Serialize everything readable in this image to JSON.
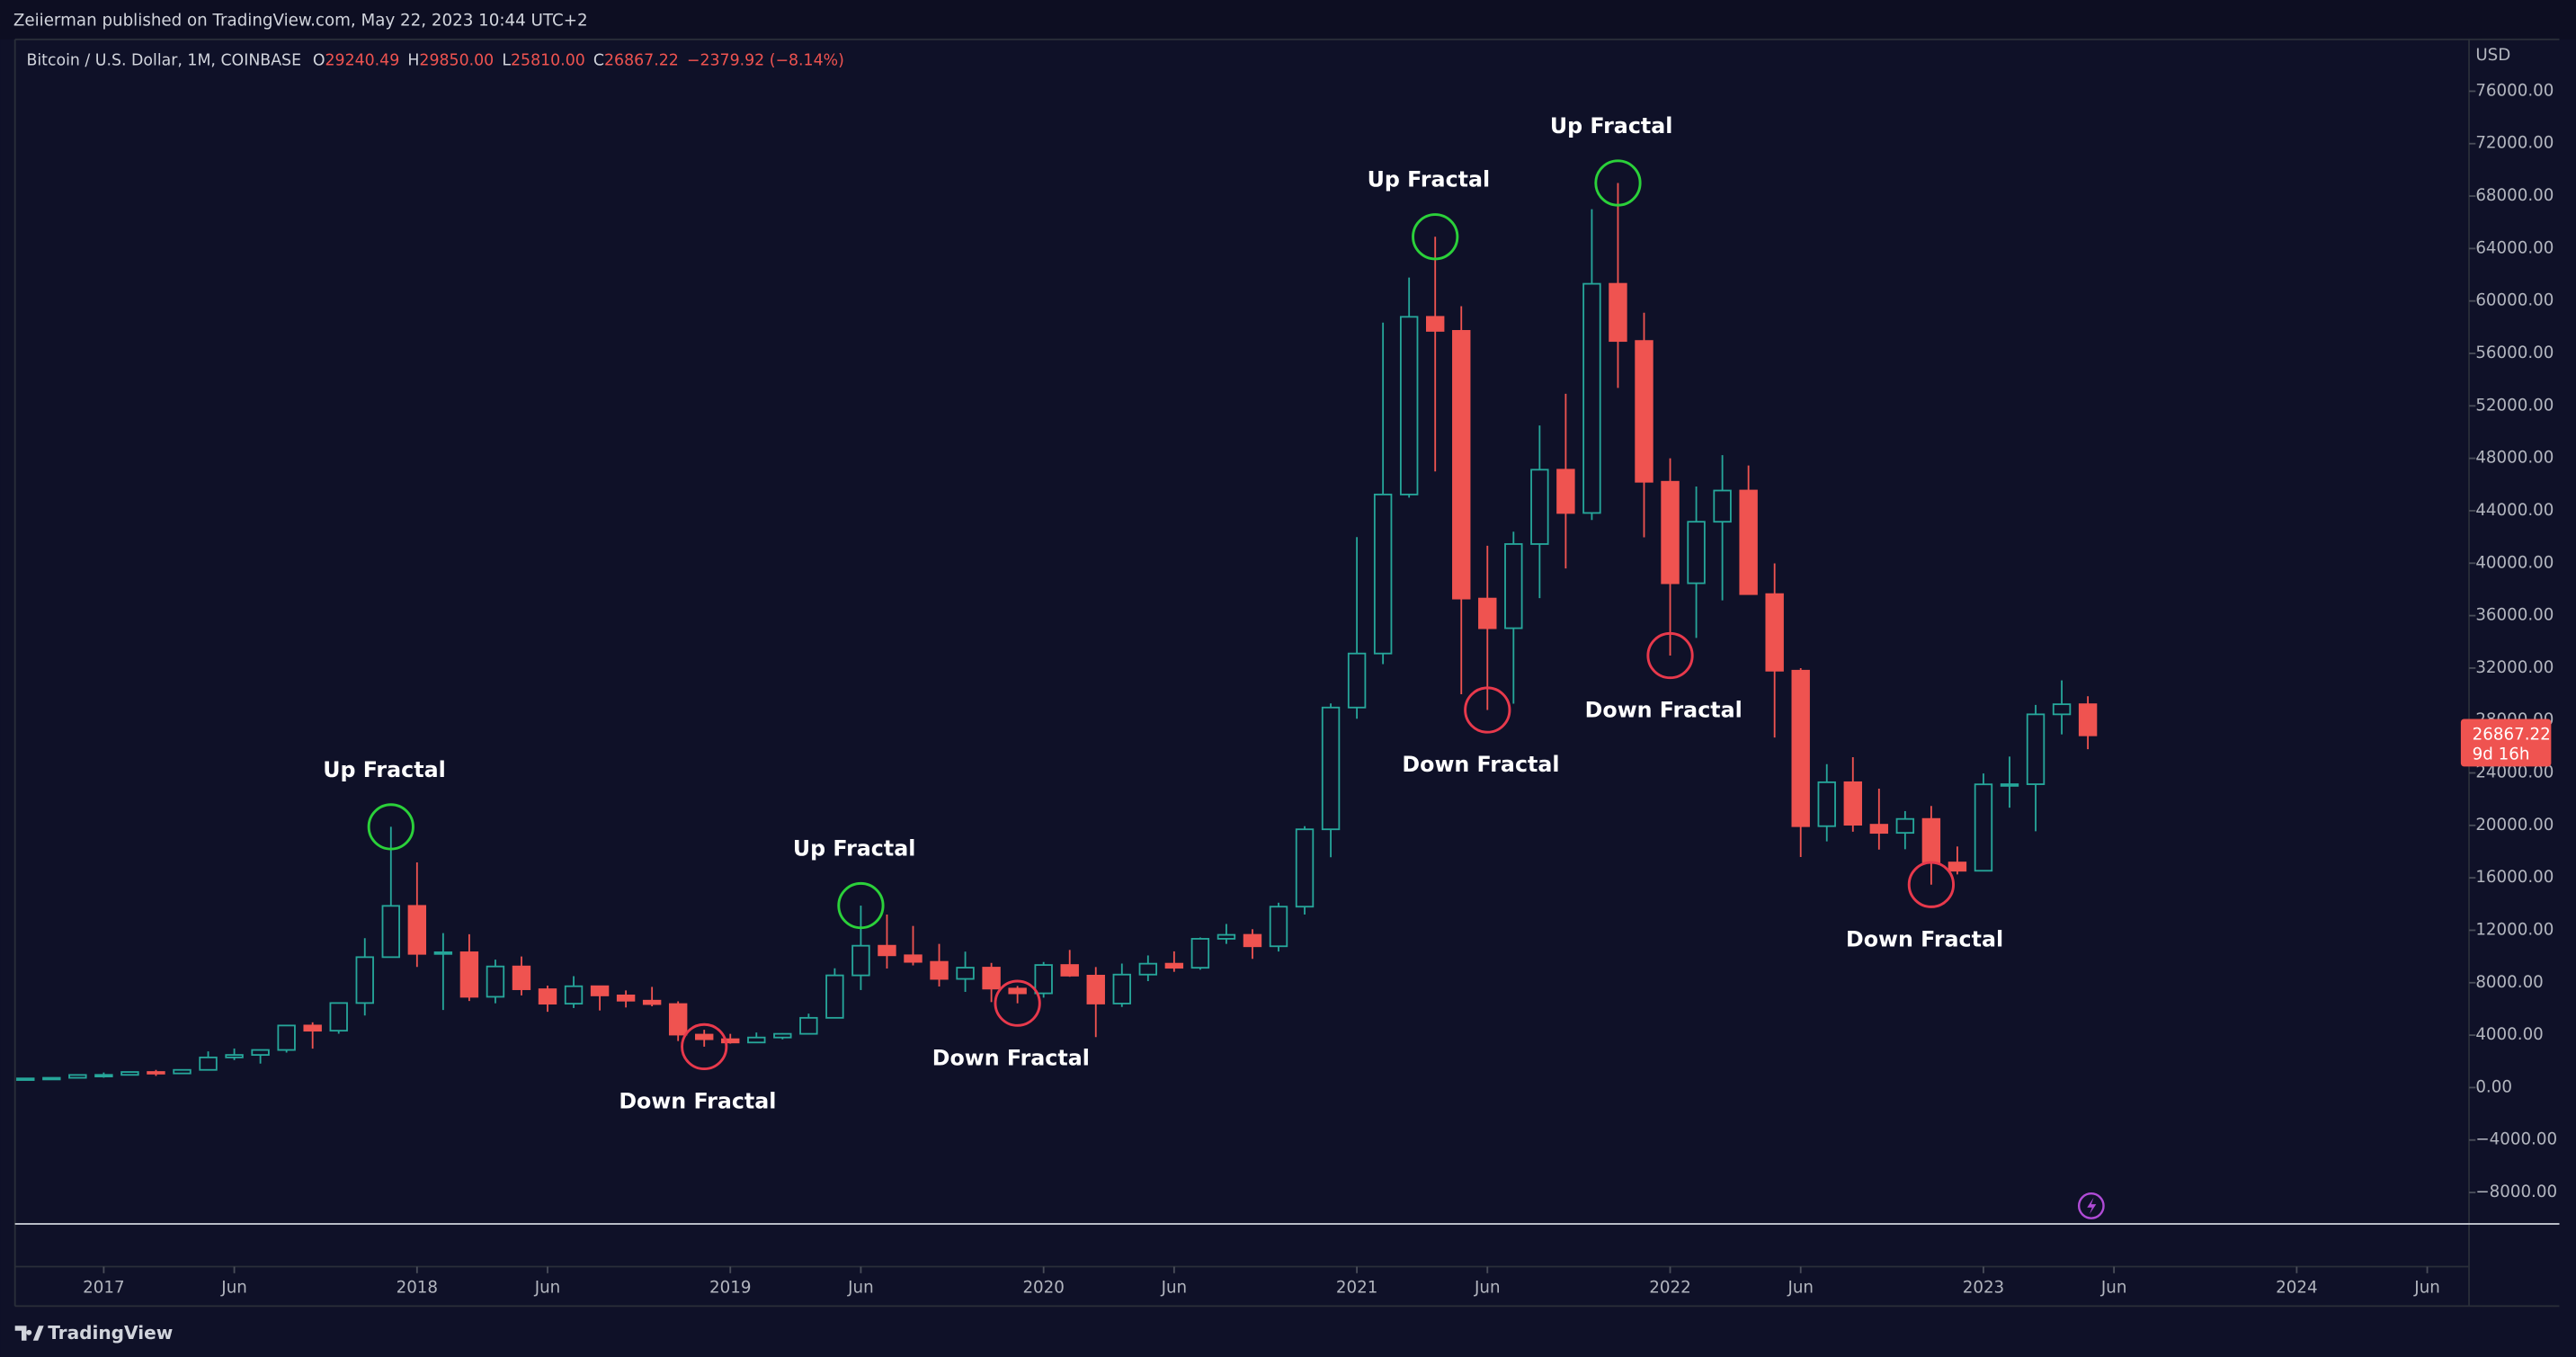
{
  "header": {
    "published": "Zeiierman published on TradingView.com, May 22, 2023 10:44 UTC+2"
  },
  "legend": {
    "symbol": "Bitcoin / U.S. Dollar, 1M, COINBASE",
    "fields": [
      {
        "key": "O",
        "value": "29240.49"
      },
      {
        "key": "H",
        "value": "29850.00"
      },
      {
        "key": "L",
        "value": "25810.00"
      },
      {
        "key": "C",
        "value": "26867.22"
      }
    ],
    "change": "−2379.92 (−8.14%)"
  },
  "footer": {
    "brand": "TradingView"
  },
  "chart_data": {
    "type": "candlestick",
    "currency": "USD",
    "up_color": "#26a69a",
    "down_color": "#ef5350",
    "grid": false,
    "x": [
      "2016-10",
      "2016-11",
      "2016-12",
      "2017-01",
      "2017-02",
      "2017-03",
      "2017-04",
      "2017-05",
      "2017-06",
      "2017-07",
      "2017-08",
      "2017-09",
      "2017-10",
      "2017-11",
      "2017-12",
      "2018-01",
      "2018-02",
      "2018-03",
      "2018-04",
      "2018-05",
      "2018-06",
      "2018-07",
      "2018-08",
      "2018-09",
      "2018-10",
      "2018-11",
      "2018-12",
      "2019-01",
      "2019-02",
      "2019-03",
      "2019-04",
      "2019-05",
      "2019-06",
      "2019-07",
      "2019-08",
      "2019-09",
      "2019-10",
      "2019-11",
      "2019-12",
      "2020-01",
      "2020-02",
      "2020-03",
      "2020-04",
      "2020-05",
      "2020-06",
      "2020-07",
      "2020-08",
      "2020-09",
      "2020-10",
      "2020-11",
      "2020-12",
      "2021-01",
      "2021-02",
      "2021-03",
      "2021-04",
      "2021-05",
      "2021-06",
      "2021-07",
      "2021-08",
      "2021-09",
      "2021-10",
      "2021-11",
      "2021-12",
      "2022-01",
      "2022-02",
      "2022-03",
      "2022-04",
      "2022-05",
      "2022-06",
      "2022-07",
      "2022-08",
      "2022-09",
      "2022-10",
      "2022-11",
      "2022-12",
      "2023-01",
      "2023-02",
      "2023-03",
      "2023-04",
      "2023-05"
    ],
    "open": [
      609,
      700,
      745,
      964,
      970,
      1190,
      1080,
      1350,
      2300,
      2490,
      2870,
      4735,
      4340,
      6450,
      9950,
      13860,
      10200,
      10320,
      6925,
      9240,
      7500,
      6400,
      7730,
      7030,
      6630,
      6370,
      4040,
      3690,
      3440,
      3820,
      4100,
      5320,
      8560,
      10820,
      10090,
      9590,
      8290,
      9150,
      7550,
      7190,
      9350,
      8540,
      6410,
      8620,
      9450,
      9140,
      11350,
      11650,
      10780,
      13800,
      19700,
      28990,
      33110,
      45240,
      58790,
      57720,
      37300,
      35040,
      41460,
      47130,
      43830,
      61310,
      56950,
      46210,
      38470,
      43160,
      45540,
      37640,
      31800,
      19940,
      23290,
      20050,
      19430,
      20490,
      17170,
      16540,
      23130,
      23140,
      28470,
      29240.49
    ],
    "high": [
      740,
      755,
      975,
      1150,
      1210,
      1350,
      1350,
      2760,
      2980,
      2900,
      4750,
      4980,
      6470,
      11400,
      19890,
      17180,
      11780,
      11700,
      9760,
      10000,
      7780,
      8500,
      7750,
      7410,
      7680,
      6580,
      4410,
      4100,
      4200,
      4150,
      5640,
      9100,
      13880,
      13200,
      12330,
      10960,
      10370,
      9510,
      7750,
      9580,
      10500,
      9190,
      9460,
      10080,
      10390,
      11450,
      12480,
      12080,
      14100,
      19940,
      29300,
      41990,
      58350,
      61790,
      64900,
      59600,
      41330,
      42400,
      50500,
      52920,
      67000,
      69000,
      59100,
      48000,
      45850,
      48240,
      47450,
      39980,
      31990,
      24670,
      25200,
      22800,
      21090,
      21480,
      18390,
      23960,
      25250,
      29190,
      31060,
      29850
    ],
    "low": [
      604,
      685,
      745,
      752,
      940,
      890,
      1080,
      1350,
      2100,
      1830,
      2670,
      2970,
      4110,
      5500,
      9950,
      9200,
      5920,
      6600,
      6430,
      7030,
      5780,
      6070,
      5880,
      6110,
      6200,
      3550,
      3120,
      3350,
      3390,
      3680,
      4100,
      5320,
      7440,
      9080,
      9320,
      7710,
      7300,
      6520,
      6430,
      6860,
      8450,
      3850,
      6150,
      8120,
      8830,
      8990,
      10960,
      9820,
      10380,
      13200,
      17570,
      28130,
      32300,
      45000,
      47000,
      30000,
      28800,
      29280,
      37330,
      39600,
      43290,
      53370,
      41970,
      32950,
      34300,
      37160,
      37580,
      26700,
      17590,
      18780,
      19520,
      18150,
      18180,
      15480,
      16260,
      16500,
      21350,
      19550,
      26940,
      25810
    ],
    "close": [
      700,
      745,
      964,
      970,
      1190,
      1080,
      1350,
      2300,
      2490,
      2870,
      4735,
      4340,
      6450,
      9950,
      13860,
      10200,
      10320,
      6925,
      9240,
      7500,
      6400,
      7730,
      7030,
      6630,
      6370,
      4040,
      3690,
      3440,
      3820,
      4100,
      5320,
      8560,
      10820,
      10090,
      9590,
      8290,
      9150,
      7550,
      7190,
      9350,
      8540,
      6410,
      8620,
      9450,
      9140,
      11350,
      11650,
      10780,
      13800,
      19700,
      28990,
      33110,
      45240,
      58790,
      57720,
      37300,
      35040,
      41460,
      47130,
      43830,
      61310,
      56950,
      46210,
      38470,
      43160,
      45540,
      37640,
      31800,
      19940,
      23290,
      20050,
      19430,
      20490,
      17170,
      16540,
      23130,
      23140,
      28470,
      29240,
      26867.22
    ],
    "xlim": [
      "2016-09",
      "2024-07"
    ],
    "ylim": [
      -10400,
      79950
    ],
    "xticks": [
      {
        "value": "2017-01",
        "label": "2017"
      },
      {
        "value": "2017-06",
        "label": "Jun"
      },
      {
        "value": "2018-01",
        "label": "2018"
      },
      {
        "value": "2018-06",
        "label": "Jun"
      },
      {
        "value": "2019-01",
        "label": "2019"
      },
      {
        "value": "2019-06",
        "label": "Jun"
      },
      {
        "value": "2020-01",
        "label": "2020"
      },
      {
        "value": "2020-06",
        "label": "Jun"
      },
      {
        "value": "2021-01",
        "label": "2021"
      },
      {
        "value": "2021-06",
        "label": "Jun"
      },
      {
        "value": "2022-01",
        "label": "2022"
      },
      {
        "value": "2022-06",
        "label": "Jun"
      },
      {
        "value": "2023-01",
        "label": "2023"
      },
      {
        "value": "2023-06",
        "label": "Jun"
      },
      {
        "value": "2024-01",
        "label": "2024"
      },
      {
        "value": "2024-06",
        "label": "Jun"
      }
    ],
    "yticks": [
      {
        "value": 76000,
        "label": "76000.00"
      },
      {
        "value": 72000,
        "label": "72000.00"
      },
      {
        "value": 68000,
        "label": "68000.00"
      },
      {
        "value": 64000,
        "label": "64000.00"
      },
      {
        "value": 60000,
        "label": "60000.00"
      },
      {
        "value": 56000,
        "label": "56000.00"
      },
      {
        "value": 52000,
        "label": "52000.00"
      },
      {
        "value": 48000,
        "label": "48000.00"
      },
      {
        "value": 44000,
        "label": "44000.00"
      },
      {
        "value": 40000,
        "label": "40000.00"
      },
      {
        "value": 36000,
        "label": "36000.00"
      },
      {
        "value": 32000,
        "label": "32000.00"
      },
      {
        "value": 28000,
        "label": "28000.00"
      },
      {
        "value": 24000,
        "label": "24000.00"
      },
      {
        "value": 20000,
        "label": "20000.00"
      },
      {
        "value": 16000,
        "label": "16000.00"
      },
      {
        "value": 12000,
        "label": "12000.00"
      },
      {
        "value": 8000,
        "label": "8000.00"
      },
      {
        "value": 4000,
        "label": "4000.00"
      },
      {
        "value": 0,
        "label": "0.00"
      },
      {
        "value": -4000,
        "label": "−4000.00"
      },
      {
        "value": -8000,
        "label": "−8000.00"
      }
    ],
    "last_price": {
      "value": 26867.22,
      "label": "26867.22",
      "countdown": "9d 16h"
    },
    "annotations": [
      {
        "text": "Up Fractal",
        "x": "2017-12",
        "y": 19890,
        "color": "#2bd13a",
        "side": "above"
      },
      {
        "text": "Down Fractal",
        "x": "2018-12",
        "y": 3120,
        "color": "#e8394c",
        "side": "below"
      },
      {
        "text": "Up Fractal",
        "x": "2019-06",
        "y": 13880,
        "color": "#2bd13a",
        "side": "above"
      },
      {
        "text": "Down Fractal",
        "x": "2019-12",
        "y": 6430,
        "color": "#e8394c",
        "side": "below"
      },
      {
        "text": "Up Fractal",
        "x": "2021-04",
        "y": 64900,
        "color": "#2bd13a",
        "side": "above"
      },
      {
        "text": "Down Fractal",
        "x": "2021-06",
        "y": 28800,
        "color": "#e8394c",
        "side": "below"
      },
      {
        "text": "Up Fractal",
        "x": "2021-11",
        "y": 69000,
        "color": "#2bd13a",
        "side": "above"
      },
      {
        "text": "Down Fractal",
        "x": "2022-01",
        "y": 32950,
        "color": "#e8394c",
        "side": "below"
      },
      {
        "text": "Down Fractal",
        "x": "2022-11",
        "y": 15480,
        "color": "#e8394c",
        "side": "below"
      }
    ]
  }
}
